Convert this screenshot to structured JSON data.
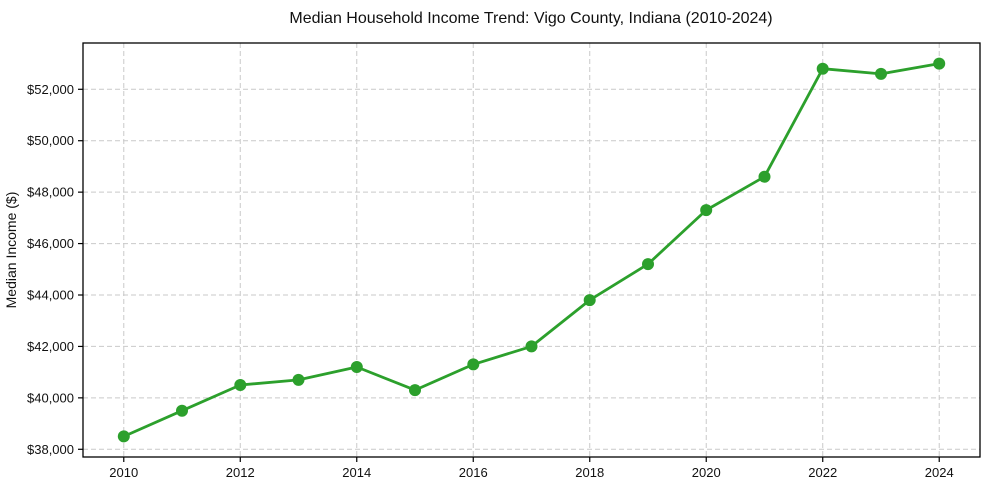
{
  "page": {
    "title": "Median Household Income Trend: Vigo County, Indiana (2010-2024)"
  },
  "chart_data": {
    "type": "line",
    "title": "Median Household Income Trend: Vigo County, Indiana (2010-2024)",
    "xlabel": "",
    "ylabel": "Median Income ($)",
    "x": [
      2010,
      2011,
      2012,
      2013,
      2014,
      2015,
      2016,
      2017,
      2018,
      2019,
      2020,
      2021,
      2022,
      2023,
      2024
    ],
    "values": [
      38500,
      39500,
      40500,
      40700,
      41200,
      40300,
      41300,
      42000,
      43800,
      45200,
      47300,
      48600,
      52800,
      52600,
      53000
    ],
    "x_ticks": [
      2010,
      2012,
      2014,
      2016,
      2018,
      2020,
      2022,
      2024
    ],
    "y_ticks": [
      38000,
      40000,
      42000,
      44000,
      46000,
      48000,
      50000,
      52000
    ],
    "y_tick_prefix": "$",
    "xlim": [
      2009.3,
      2024.7
    ],
    "ylim": [
      37700,
      53800
    ],
    "grid": true,
    "grid_style": "dashed",
    "legend": "none",
    "marker": "circle",
    "colors": {
      "line": "#2ca02c",
      "marker": "#2ca02c",
      "grid": "#c9c9c9",
      "spine": "#000000",
      "text": "#111111",
      "background": "#ffffff"
    }
  }
}
